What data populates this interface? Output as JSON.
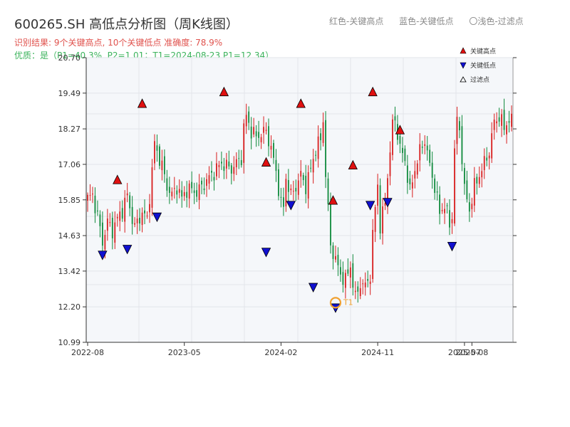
{
  "header": {
    "title": "600265.SH 高低点分析图（周K线图）",
    "result_line": "识别结果: 9个关键高点, 10个关键低点   准确度: 78.9%",
    "quality_line": "优质：是（P1=40.3%, P2=1.01；T1=2024-08-23 P1=12.34）"
  },
  "top_legend": {
    "red": "红色-关键高点",
    "blue": "蓝色-关键低点",
    "hollow": "〇浅色-过滤点"
  },
  "colors": {
    "up": "#d81e1e",
    "down": "#0f8a3c",
    "high_marker": "#e01010",
    "low_marker": "#1010d0",
    "t1_marker": "#f0a030",
    "plot_bg": "#f5f7fa",
    "grid": "#e2e5ea"
  },
  "chart_data": {
    "type": "candlestick",
    "y_ticks": [
      "10.99",
      "12.20",
      "13.42",
      "14.63",
      "15.85",
      "17.06",
      "18.27",
      "19.49",
      "20.70"
    ],
    "ylim": [
      10.99,
      20.7
    ],
    "x_ticks": [
      {
        "label": "2022-08",
        "index": 0
      },
      {
        "label": "2023-05",
        "index": 39
      },
      {
        "label": "2024-02",
        "index": 78
      },
      {
        "label": "2024-11",
        "index": 117
      },
      {
        "label": "2025-07",
        "index": 152
      },
      {
        "label": "2025-08",
        "index": 155
      }
    ],
    "legend": {
      "position": "top-right",
      "entries": [
        {
          "name": "关键高点",
          "symbol": "triangle-up"
        },
        {
          "name": "关键低点",
          "symbol": "triangle-down"
        },
        {
          "name": "过滤点",
          "symbol": "hollow-triangle"
        }
      ]
    },
    "anchors": [
      [
        0,
        15.9
      ],
      [
        2,
        16.0
      ],
      [
        4,
        15.3
      ],
      [
        6,
        14.4
      ],
      [
        8,
        15.1
      ],
      [
        10,
        14.8
      ],
      [
        12,
        15.2
      ],
      [
        14,
        15.5
      ],
      [
        16,
        16.0
      ],
      [
        18,
        15.2
      ],
      [
        19,
        14.9
      ],
      [
        20,
        15.1
      ],
      [
        22,
        15.4
      ],
      [
        24,
        15.2
      ],
      [
        26,
        16.8
      ],
      [
        27,
        17.8
      ],
      [
        28,
        17.5
      ],
      [
        30,
        17.0
      ],
      [
        32,
        16.3
      ],
      [
        34,
        16.0
      ],
      [
        36,
        16.3
      ],
      [
        38,
        15.9
      ],
      [
        40,
        16.2
      ],
      [
        42,
        16.2
      ],
      [
        44,
        16.1
      ],
      [
        46,
        16.3
      ],
      [
        48,
        16.5
      ],
      [
        50,
        16.7
      ],
      [
        52,
        16.9
      ],
      [
        54,
        17.1
      ],
      [
        56,
        17.0
      ],
      [
        58,
        16.9
      ],
      [
        60,
        17.1
      ],
      [
        62,
        17.3
      ],
      [
        63,
        18.3
      ],
      [
        64,
        18.7
      ],
      [
        66,
        18.2
      ],
      [
        68,
        18.0
      ],
      [
        70,
        18.1
      ],
      [
        72,
        18.2
      ],
      [
        74,
        17.6
      ],
      [
        76,
        16.8
      ],
      [
        78,
        15.7
      ],
      [
        79,
        15.6
      ],
      [
        80,
        16.6
      ],
      [
        82,
        16.0
      ],
      [
        84,
        16.3
      ],
      [
        86,
        16.7
      ],
      [
        88,
        16.3
      ],
      [
        90,
        16.9
      ],
      [
        92,
        17.6
      ],
      [
        94,
        17.9
      ],
      [
        95,
        18.6
      ],
      [
        96,
        16.7
      ],
      [
        98,
        14.3
      ],
      [
        100,
        13.8
      ],
      [
        102,
        13.3
      ],
      [
        104,
        13.1
      ],
      [
        106,
        13.6
      ],
      [
        107,
        13.0
      ],
      [
        108,
        12.5
      ],
      [
        110,
        13.0
      ],
      [
        112,
        12.9
      ],
      [
        114,
        13.3
      ],
      [
        115,
        14.6
      ],
      [
        116,
        15.6
      ],
      [
        117,
        16.4
      ],
      [
        118,
        14.9
      ],
      [
        120,
        15.8
      ],
      [
        121,
        16.7
      ],
      [
        122,
        17.5
      ],
      [
        123,
        18.4
      ],
      [
        124,
        18.6
      ],
      [
        126,
        17.6
      ],
      [
        128,
        17.2
      ],
      [
        130,
        16.1
      ],
      [
        132,
        16.9
      ],
      [
        134,
        17.5
      ],
      [
        136,
        17.9
      ],
      [
        138,
        17.0
      ],
      [
        140,
        16.3
      ],
      [
        142,
        15.4
      ],
      [
        144,
        15.7
      ],
      [
        146,
        15.0
      ],
      [
        147,
        15.3
      ],
      [
        148,
        17.6
      ],
      [
        149,
        18.5
      ],
      [
        150,
        18.3
      ],
      [
        152,
        16.2
      ],
      [
        154,
        15.5
      ],
      [
        156,
        16.3
      ],
      [
        158,
        16.7
      ],
      [
        160,
        17.1
      ],
      [
        162,
        17.5
      ],
      [
        164,
        18.5
      ],
      [
        166,
        18.7
      ],
      [
        168,
        18.3
      ],
      [
        170,
        18.6
      ],
      [
        171,
        18.5
      ]
    ],
    "key_highs": [
      {
        "index": 12,
        "price": 16.3
      },
      {
        "index": 22,
        "price": 18.9
      },
      {
        "index": 55,
        "price": 19.3
      },
      {
        "index": 72,
        "price": 16.9
      },
      {
        "index": 86,
        "price": 18.9
      },
      {
        "index": 99,
        "price": 15.6
      },
      {
        "index": 107,
        "price": 16.8
      },
      {
        "index": 115,
        "price": 19.3
      },
      {
        "index": 126,
        "price": 18.0
      }
    ],
    "key_lows": [
      {
        "index": 6,
        "price": 14.2
      },
      {
        "index": 16,
        "price": 14.4
      },
      {
        "index": 28,
        "price": 15.5
      },
      {
        "index": 72,
        "price": 14.3
      },
      {
        "index": 82,
        "price": 15.9
      },
      {
        "index": 91,
        "price": 13.1
      },
      {
        "index": 100,
        "price": 12.4
      },
      {
        "index": 114,
        "price": 15.9
      },
      {
        "index": 121,
        "price": 16.0
      },
      {
        "index": 147,
        "price": 14.5
      }
    ],
    "t1": {
      "index": 100,
      "price": 12.34,
      "label": "T1"
    }
  }
}
